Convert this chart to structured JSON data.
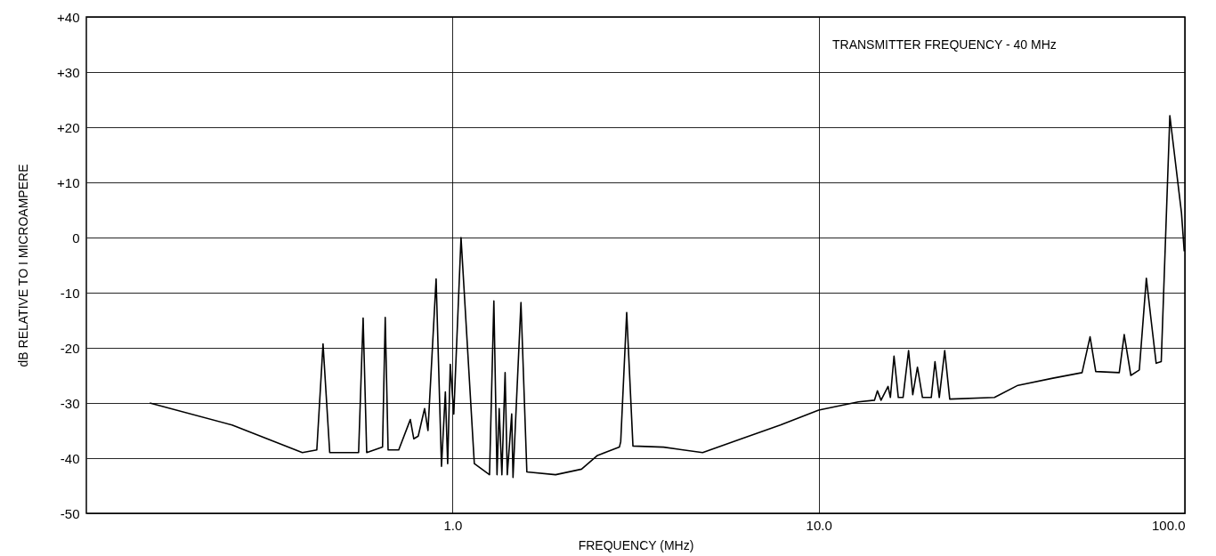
{
  "chart_data": {
    "type": "line",
    "xlabel": "FREQUENCY (MHz)",
    "ylabel": "dB RELATIVE TO I MICROAMPERE",
    "annotations": [
      "TRANSMITTER FREQUENCY - 40 MHz"
    ],
    "log": "x",
    "grid": true,
    "marker": "none",
    "line_style": "solid",
    "xlim": [
      0.1,
      100
    ],
    "xticks": [
      {
        "value": 1,
        "label": "1.0"
      },
      {
        "value": 10,
        "label": "10.0"
      },
      {
        "value": 100,
        "label": "100.0"
      }
    ],
    "ylim": [
      -50,
      40
    ],
    "yticks": [
      {
        "value": -50,
        "label": "-50"
      },
      {
        "value": -40,
        "label": "-40"
      },
      {
        "value": -30,
        "label": "-30"
      },
      {
        "value": -20,
        "label": "-20"
      },
      {
        "value": -10,
        "label": "-10"
      },
      0,
      {
        "value": 10,
        "label": "+10"
      },
      {
        "value": 20,
        "label": "+20"
      },
      {
        "value": 30,
        "label": "+30"
      },
      {
        "value": 40,
        "label": "+40"
      }
    ],
    "series": [
      {
        "color": "#000000",
        "x": [
          0.149,
          0.25,
          0.389,
          0.426,
          0.443,
          0.462,
          0.554,
          0.57,
          0.583,
          0.644,
          0.655,
          0.667,
          0.713,
          0.767,
          0.784,
          0.806,
          0.839,
          0.857,
          0.902,
          0.933,
          0.956,
          0.97,
          0.986,
          1.008,
          1.055,
          1.147,
          1.262,
          1.297,
          1.323,
          1.341,
          1.364,
          1.392,
          1.411,
          1.451,
          1.463,
          1.538,
          1.596,
          1.912,
          2.251,
          2.489,
          2.856,
          2.88,
          2.99,
          3.11,
          3.77,
          4.82,
          6.15,
          7.86,
          10,
          12.83,
          14.2,
          14.47,
          14.8,
          15.47,
          15.7,
          16.06,
          16.5,
          17.0,
          17.6,
          18.07,
          18.61,
          19.21,
          20.3,
          20.78,
          21.35,
          22.09,
          22.8,
          30.2,
          35.0,
          43.6,
          52.4,
          55.1,
          57.1,
          66.2,
          68.3,
          71.2,
          75.1,
          78.5,
          80.9,
          83.5,
          86.2,
          91.0,
          97.9,
          99.6
        ],
        "values": [
          -30,
          -34,
          -39,
          -38.5,
          -19.3,
          -39,
          -39,
          -14.6,
          -39,
          -38,
          -14.5,
          -38.5,
          -38.5,
          -33,
          -36.5,
          -36,
          -31,
          -35,
          -7.5,
          -41.5,
          -28,
          -41,
          -23,
          -32,
          0,
          -41,
          -43,
          -11.5,
          -43,
          -31,
          -43,
          -24.5,
          -43,
          -32,
          -43.5,
          -11.8,
          -42.5,
          -43,
          -42,
          -39.5,
          -38,
          -37,
          -13.6,
          -37.8,
          -38,
          -39,
          -36.5,
          -34,
          -31.3,
          -29.8,
          -29.5,
          -27.8,
          -29.5,
          -27,
          -29,
          -21.5,
          -29,
          -29,
          -20.5,
          -28.5,
          -23.5,
          -29,
          -29,
          -22.5,
          -29,
          -20.5,
          -29.3,
          -29,
          -26.8,
          -25.5,
          -24.5,
          -18,
          -24.3,
          -24.5,
          -17.6,
          -25,
          -24,
          -7.4,
          -15,
          -22.8,
          -22.5,
          22.1,
          4.5,
          -2.5
        ]
      }
    ]
  }
}
